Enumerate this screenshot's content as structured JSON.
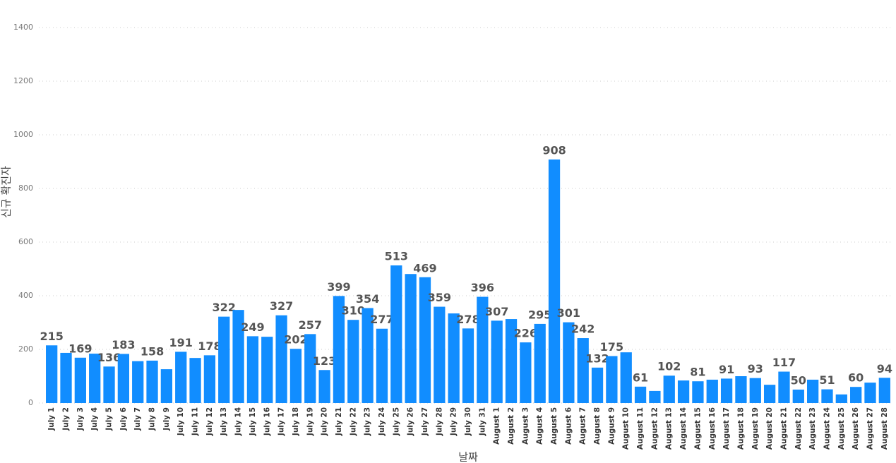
{
  "chart_data": {
    "type": "bar",
    "x_label": "날짜",
    "y_label": "신규 확진자",
    "categories": [
      "July 1",
      "July 2",
      "July 3",
      "July 4",
      "July 5",
      "July 6",
      "July 7",
      "July 8",
      "July 9",
      "July 10",
      "July 11",
      "July 12",
      "July 13",
      "July 14",
      "July 15",
      "July 16",
      "July 17",
      "July 18",
      "July 19",
      "July 20",
      "July 21",
      "July 22",
      "July 23",
      "July 24",
      "July 25",
      "July 26",
      "July 27",
      "July 28",
      "July 29",
      "July 30",
      "July 31",
      "August 1",
      "August 2",
      "August 3",
      "August 4",
      "August 5",
      "August 6",
      "August 7",
      "August 8",
      "August 9",
      "August 10",
      "August 11",
      "August 12",
      "August 13",
      "August 14",
      "August 15",
      "August 16",
      "August 17",
      "August 18",
      "August 19",
      "August 20",
      "August 21",
      "August 22",
      "August 23",
      "August 24",
      "August 25",
      "August 26",
      "August 27",
      "August 28"
    ],
    "values": [
      215,
      187,
      169,
      184,
      136,
      183,
      156,
      158,
      126,
      191,
      168,
      178,
      322,
      347,
      249,
      247,
      327,
      202,
      257,
      123,
      399,
      310,
      354,
      277,
      513,
      481,
      469,
      359,
      334,
      278,
      396,
      307,
      313,
      226,
      295,
      908,
      301,
      242,
      132,
      175,
      189,
      61,
      45,
      102,
      84,
      81,
      87,
      91,
      100,
      93,
      68,
      117,
      50,
      87,
      51,
      32,
      60,
      76,
      94
    ],
    "value_labels": [
      "215",
      null,
      "169",
      null,
      "136",
      "183",
      null,
      "158",
      null,
      "191",
      null,
      "178",
      "322",
      null,
      "249",
      null,
      "327",
      "202",
      "257",
      "123",
      "399",
      "310",
      "354",
      "277",
      "513",
      null,
      "469",
      "359",
      null,
      "278",
      "396",
      "307",
      null,
      "226",
      "295",
      "908",
      "301",
      "242",
      "132",
      "175",
      null,
      "61",
      null,
      "102",
      null,
      "81",
      null,
      "91",
      null,
      "93",
      null,
      "117",
      "50",
      null,
      "51",
      null,
      "60",
      null,
      "94"
    ],
    "color": "#118dff",
    "ylim": [
      0,
      1400
    ],
    "yticks": [
      0,
      200,
      400,
      600,
      800,
      1000,
      1200,
      1400
    ],
    "grid": true
  }
}
